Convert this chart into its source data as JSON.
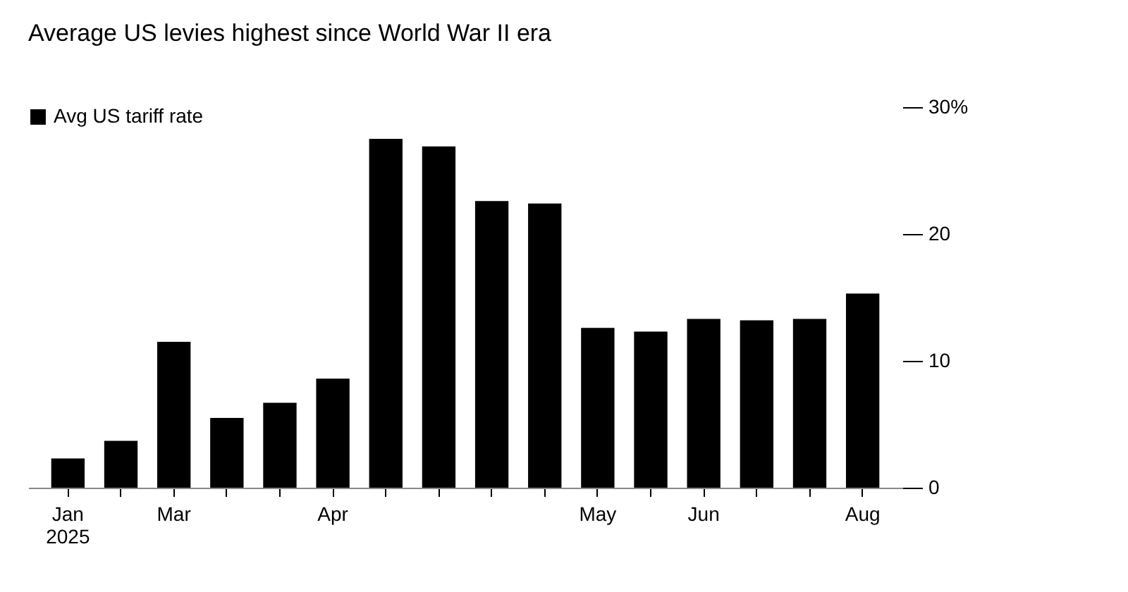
{
  "chart_data": {
    "type": "bar",
    "title": "Average US levies highest since World War II era",
    "categories": [
      "Jan\n2025",
      null,
      "Mar",
      null,
      null,
      "Apr",
      null,
      null,
      null,
      null,
      "May",
      null,
      "Jun",
      null,
      null,
      "Aug"
    ],
    "series": [
      {
        "name": "Avg US tariff rate",
        "color": "#000000",
        "values": [
          2.3,
          3.7,
          11.5,
          5.5,
          6.7,
          8.6,
          27.5,
          26.9,
          22.6,
          22.4,
          12.6,
          12.3,
          13.3,
          13.2,
          13.3,
          15.3
        ]
      }
    ],
    "ylim": [
      0,
      30
    ],
    "yticks": [
      0,
      10,
      20,
      {
        "value": 30,
        "label": "30%"
      }
    ],
    "grid": false,
    "legend": "top left"
  }
}
